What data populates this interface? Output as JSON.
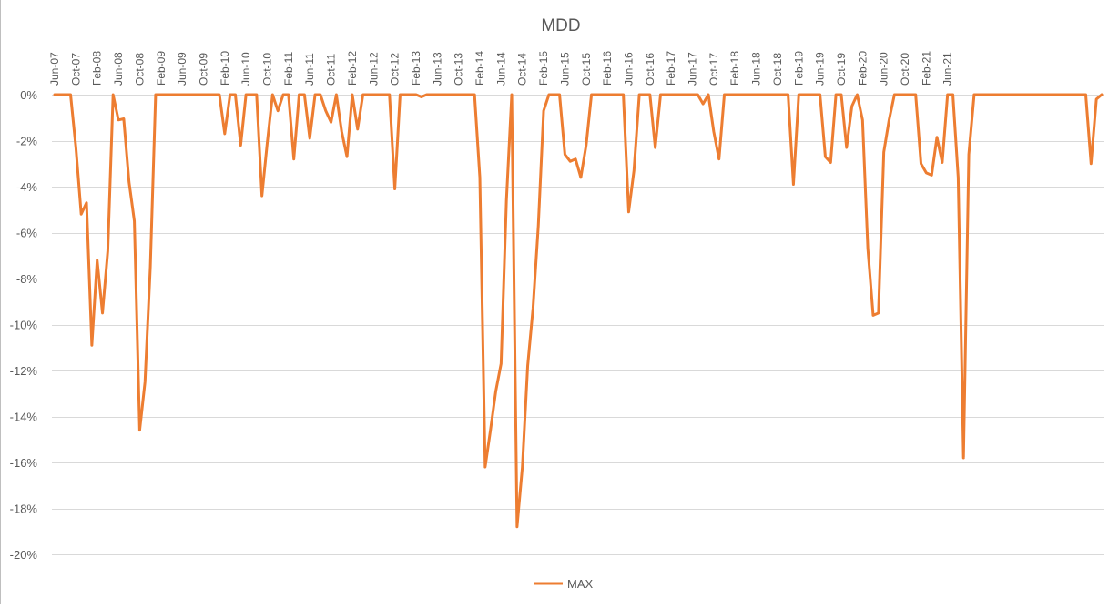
{
  "chart_data": {
    "type": "line",
    "title": "MDD",
    "xlabel": "",
    "ylabel": "",
    "ylim": [
      -20,
      0
    ],
    "y_ticks": [
      0,
      -2,
      -4,
      -6,
      -8,
      -10,
      -12,
      -14,
      -16,
      -18,
      -20
    ],
    "y_tick_labels": [
      "0%",
      "-2%",
      "-4%",
      "-6%",
      "-8%",
      "-10%",
      "-12%",
      "-14%",
      "-16%",
      "-18%",
      "-20%"
    ],
    "x_start": "Jun-07",
    "x_tick_step_months": 4,
    "x_tick_labels": [
      "Jun-07",
      "Oct-07",
      "Feb-08",
      "Jun-08",
      "Oct-08",
      "Feb-09",
      "Jun-09",
      "Oct-09",
      "Feb-10",
      "Jun-10",
      "Oct-10",
      "Feb-11",
      "Jun-11",
      "Oct-11",
      "Feb-12",
      "Jun-12",
      "Oct-12",
      "Feb-13",
      "Jun-13",
      "Oct-13",
      "Feb-14",
      "Jun-14",
      "Oct-14",
      "Feb-15",
      "Jun-15",
      "Oct-15",
      "Feb-16",
      "Jun-16",
      "Oct-16",
      "Feb-17",
      "Jun-17",
      "Oct-17",
      "Feb-18",
      "Jun-18",
      "Oct-18",
      "Feb-19",
      "Jun-19",
      "Oct-19",
      "Feb-20",
      "Jun-20",
      "Oct-20",
      "Feb-21",
      "Jun-21"
    ],
    "grid": true,
    "legend_position": "bottom",
    "colors": {
      "line": "#ED7D31",
      "grid": "#D9D9D9",
      "text": "#595959",
      "title": "#595959"
    },
    "series": [
      {
        "name": "MAX",
        "values": [
          0,
          0,
          0,
          0,
          -2.3,
          -5.2,
          -4.7,
          -10.9,
          -7.2,
          -9.5,
          -6.8,
          0,
          -1.1,
          -1.05,
          -3.8,
          -5.5,
          -14.6,
          -12.5,
          -7.5,
          0,
          0,
          0,
          0,
          0,
          0,
          0,
          0,
          0,
          0,
          0,
          0,
          0,
          -1.7,
          0,
          0,
          -2.2,
          0,
          0,
          0,
          -4.4,
          -2.1,
          0,
          -0.7,
          0,
          0,
          -2.8,
          0,
          0,
          -1.9,
          0,
          0,
          -0.7,
          -1.2,
          0,
          -1.6,
          -2.7,
          0,
          -1.5,
          0,
          0,
          0,
          0,
          0,
          0,
          -4.1,
          0,
          0,
          0,
          0,
          -0.1,
          0,
          0,
          0,
          0,
          0,
          0,
          0,
          0,
          0,
          0,
          -3.6,
          -16.2,
          -14.6,
          -12.9,
          -11.7,
          -4.6,
          0,
          -18.8,
          -16.2,
          -11.8,
          -9.3,
          -5.7,
          -0.7,
          0,
          0,
          0,
          -2.6,
          -2.9,
          -2.8,
          -3.6,
          -2.2,
          0,
          0,
          0,
          0,
          0,
          0,
          0,
          -5.1,
          -3.3,
          0,
          0,
          0,
          -2.3,
          0,
          0,
          0,
          0,
          0,
          0,
          0,
          0,
          -0.4,
          0,
          -1.6,
          -2.8,
          0,
          0,
          0,
          0,
          0,
          0,
          0,
          0,
          0,
          0,
          0,
          0,
          0,
          -3.9,
          0,
          0,
          0,
          0,
          0,
          -2.7,
          -2.95,
          0,
          0,
          -2.3,
          -0.5,
          0,
          -1.1,
          -6.7,
          -9.6,
          -9.5,
          -2.5,
          -1.1,
          0,
          0,
          0,
          0,
          0,
          -3.0,
          -3.4,
          -3.5,
          -1.85,
          -2.95,
          0,
          0,
          -3.6,
          -15.8,
          -2.6,
          0,
          0,
          0,
          0,
          0,
          0,
          0,
          0,
          0,
          0,
          0,
          0,
          0,
          0,
          0,
          0,
          0,
          0,
          0,
          0,
          0,
          0,
          -3.0,
          -0.2,
          0
        ]
      }
    ]
  }
}
